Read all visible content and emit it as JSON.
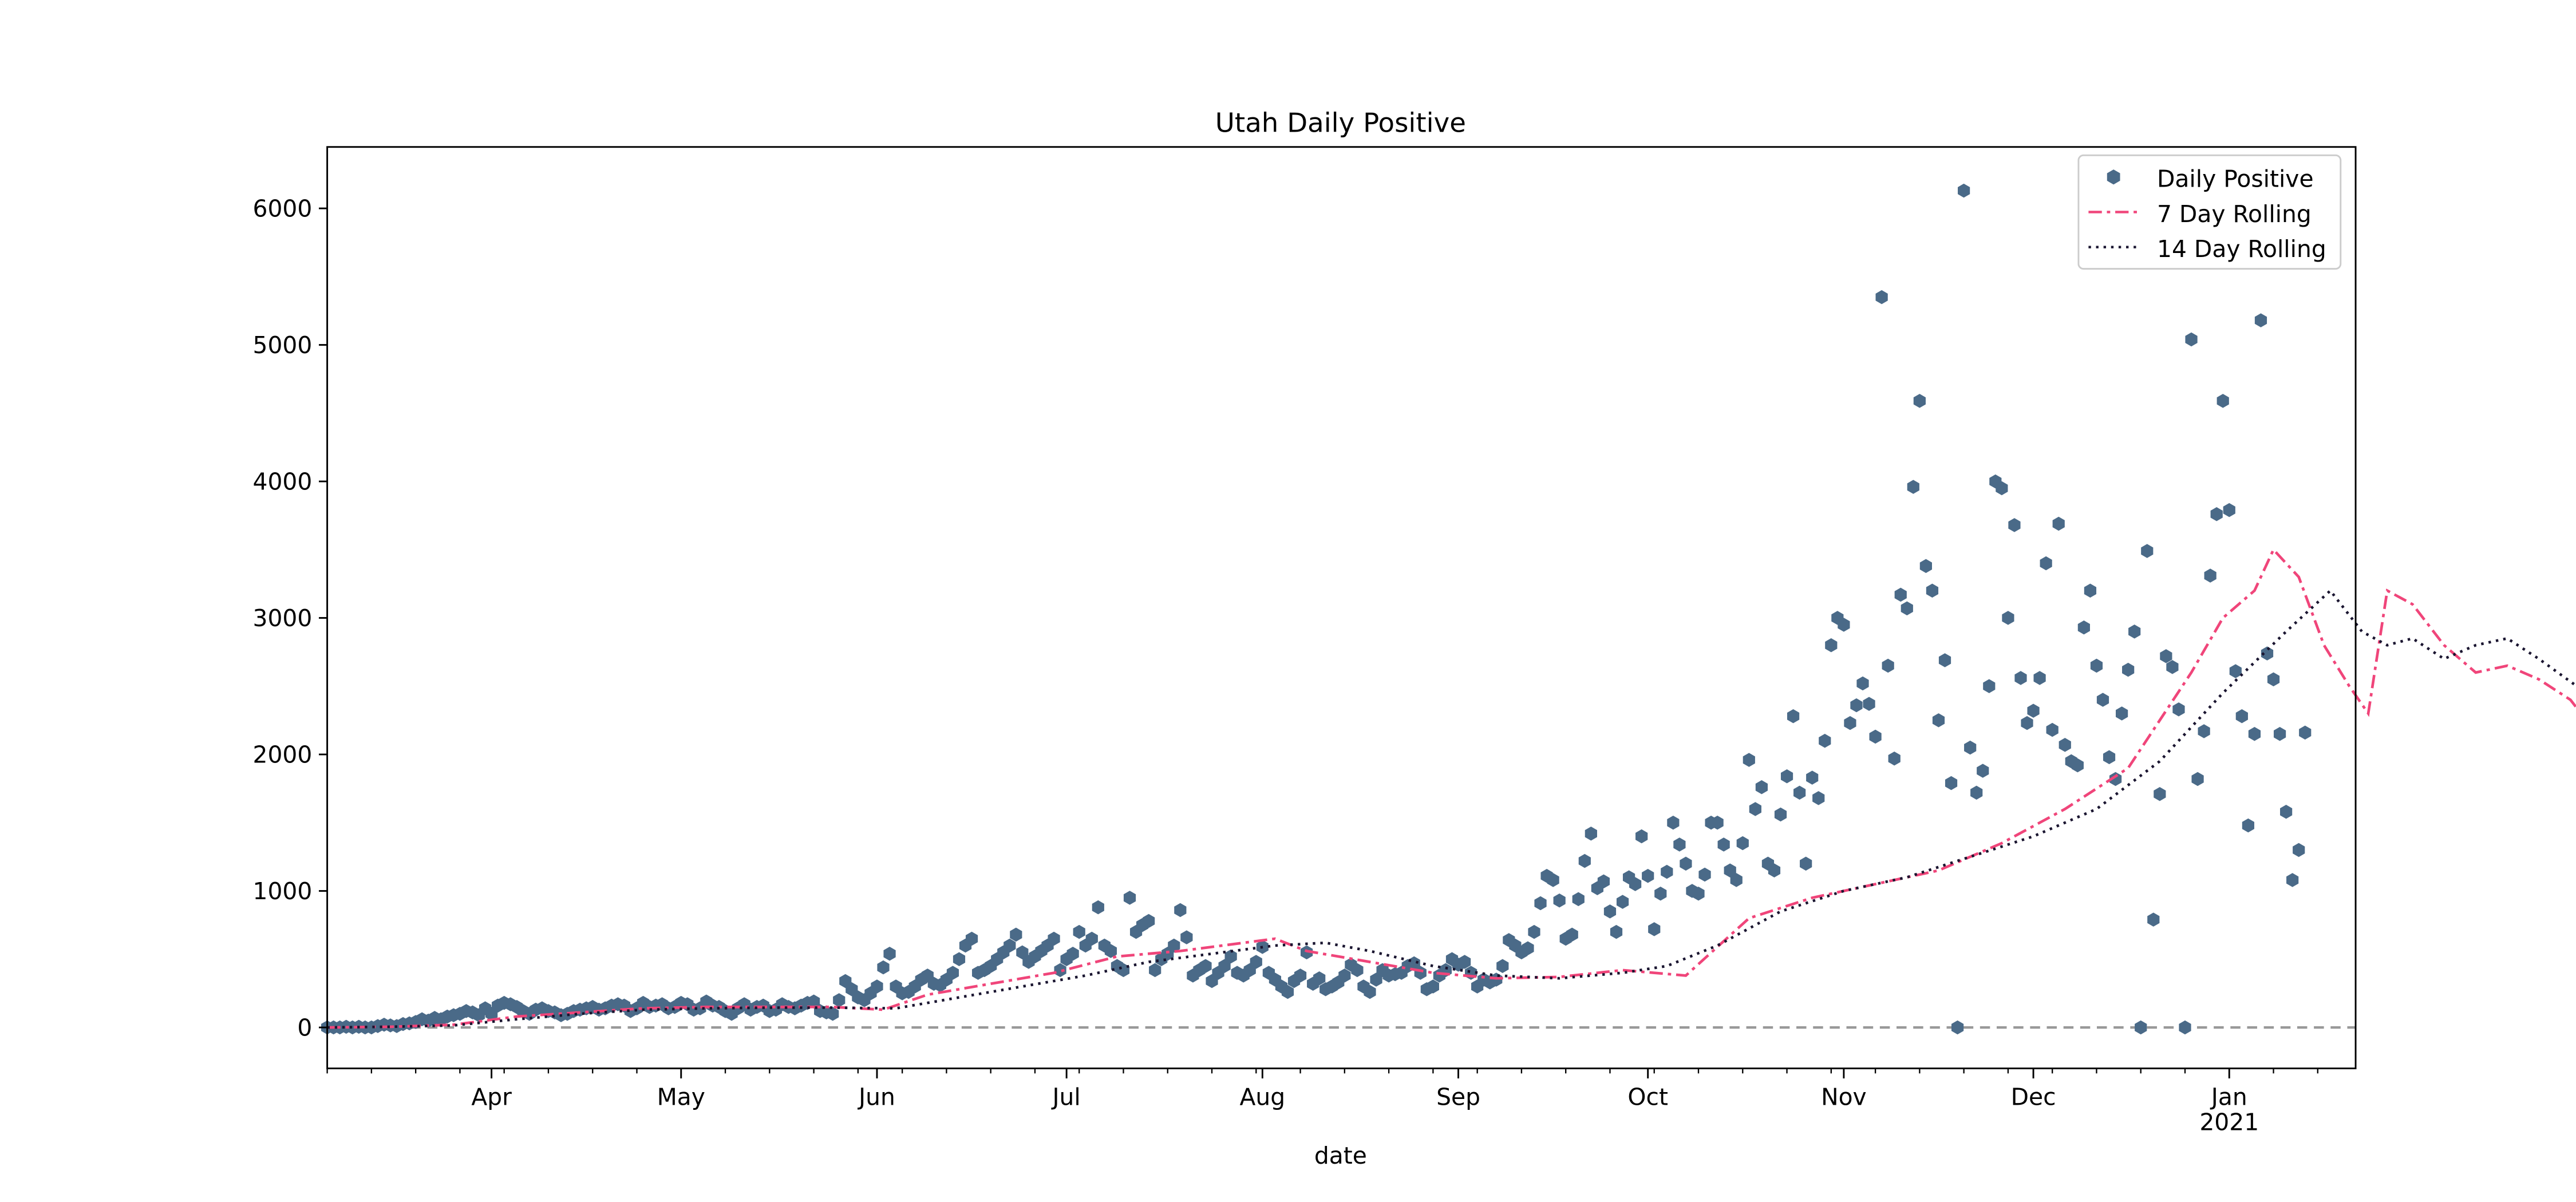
{
  "chart_data": {
    "type": "scatter",
    "title": "Utah Daily Positive",
    "xlabel": "date",
    "ylabel": "",
    "x_range": [
      "2020-03-06",
      "2021-01-21"
    ],
    "ylim": [
      -300,
      6450
    ],
    "y_ticks": [
      0,
      1000,
      2000,
      3000,
      4000,
      5000,
      6000
    ],
    "x_ticks": [
      {
        "date": "2020-04-01",
        "label": "Apr"
      },
      {
        "date": "2020-05-01",
        "label": "May"
      },
      {
        "date": "2020-06-01",
        "label": "Jun"
      },
      {
        "date": "2020-07-01",
        "label": "Jul"
      },
      {
        "date": "2020-08-01",
        "label": "Aug"
      },
      {
        "date": "2020-09-01",
        "label": "Sep"
      },
      {
        "date": "2020-10-01",
        "label": "Oct"
      },
      {
        "date": "2020-11-01",
        "label": "Nov"
      },
      {
        "date": "2020-12-01",
        "label": "Dec"
      },
      {
        "date": "2021-01-01",
        "label": "Jan",
        "sublabel": "2021"
      }
    ],
    "grid": false,
    "legend_position": "top-right",
    "zero_line": {
      "y": 0,
      "color": "#999999",
      "style": "dashed"
    },
    "series": [
      {
        "name": "Daily Positive",
        "kind": "scatter",
        "marker": "hexagon",
        "color": "#4a6a88",
        "x_start": "2020-03-06",
        "values": [
          0,
          0,
          0,
          5,
          0,
          5,
          0,
          0,
          10,
          20,
          15,
          10,
          25,
          30,
          40,
          60,
          50,
          70,
          60,
          80,
          90,
          100,
          120,
          110,
          90,
          140,
          100,
          160,
          180,
          170,
          150,
          120,
          100,
          130,
          140,
          120,
          110,
          90,
          100,
          120,
          130,
          140,
          150,
          130,
          140,
          160,
          170,
          160,
          120,
          140,
          180,
          150,
          160,
          170,
          140,
          150,
          180,
          170,
          130,
          140,
          190,
          160,
          150,
          120,
          100,
          140,
          170,
          130,
          150,
          160,
          120,
          130,
          170,
          150,
          140,
          160,
          180,
          190,
          120,
          110,
          100,
          200,
          340,
          280,
          220,
          200,
          250,
          300,
          440,
          540,
          300,
          250,
          260,
          300,
          350,
          380,
          320,
          310,
          350,
          400,
          500,
          600,
          650,
          400,
          420,
          450,
          500,
          550,
          600,
          680,
          550,
          480,
          520,
          560,
          600,
          650,
          420,
          500,
          540,
          700,
          600,
          650,
          880,
          600,
          560,
          450,
          420,
          950,
          700,
          750,
          780,
          420,
          500,
          540,
          600,
          860,
          660,
          380,
          420,
          450,
          340,
          400,
          450,
          520,
          400,
          380,
          420,
          480,
          590,
          400,
          350,
          300,
          260,
          340,
          380,
          550,
          320,
          360,
          280,
          300,
          330,
          380,
          460,
          420,
          300,
          260,
          350,
          420,
          380,
          390,
          400,
          450,
          470,
          400,
          280,
          300,
          380,
          420,
          500,
          460,
          480,
          400,
          300,
          350,
          330,
          350,
          450,
          640,
          600,
          550,
          580,
          700,
          910,
          1110,
          1080,
          930,
          650,
          680,
          940,
          1220,
          1420,
          1020,
          1070,
          850,
          700,
          920,
          1100,
          1050,
          1400,
          1110,
          720,
          980,
          1140,
          1500,
          1340,
          1200,
          1000,
          980,
          1120,
          1500,
          1500,
          1340,
          1150,
          1080,
          1350,
          1960,
          1600,
          1760,
          1200,
          1150,
          1560,
          1840,
          2280,
          1720,
          1200,
          1830,
          1680,
          2100,
          2800,
          3000,
          2950,
          2230,
          2360,
          2520,
          2370,
          2130,
          5350,
          2650,
          1970,
          3170,
          3070,
          3960,
          4590,
          3380,
          3200,
          2250,
          2690,
          1790,
          0,
          6130,
          2050,
          1720,
          1880,
          2500,
          4000,
          3950,
          3000,
          3680,
          2560,
          2230,
          2320,
          2560,
          3400,
          2180,
          3690,
          2070,
          1950,
          1920,
          2930,
          3200,
          2650,
          2400,
          1980,
          1820,
          2300,
          2620,
          2900,
          0,
          3490,
          790,
          1710,
          2720,
          2640,
          2330,
          0,
          5040,
          1820,
          2170,
          3310,
          3760,
          4590,
          3790,
          2610,
          2280,
          1480,
          2150,
          5180,
          2740,
          2550,
          2150,
          1580,
          1080,
          1300,
          2160
        ]
      },
      {
        "name": "7 Day Rolling",
        "kind": "line",
        "style": "dashdot",
        "color": "#f0457a",
        "x_start": "2020-03-06",
        "points": [
          [
            0,
            0
          ],
          [
            10,
            5
          ],
          [
            20,
            20
          ],
          [
            30,
            80
          ],
          [
            40,
            110
          ],
          [
            50,
            140
          ],
          [
            60,
            150
          ],
          [
            70,
            150
          ],
          [
            80,
            150
          ],
          [
            88,
            130
          ],
          [
            95,
            240
          ],
          [
            105,
            320
          ],
          [
            115,
            400
          ],
          [
            125,
            520
          ],
          [
            135,
            560
          ],
          [
            145,
            620
          ],
          [
            150,
            650
          ],
          [
            155,
            560
          ],
          [
            165,
            480
          ],
          [
            175,
            400
          ],
          [
            185,
            360
          ],
          [
            195,
            370
          ],
          [
            205,
            420
          ],
          [
            215,
            380
          ],
          [
            225,
            800
          ],
          [
            235,
            950
          ],
          [
            245,
            1050
          ],
          [
            255,
            1150
          ],
          [
            265,
            1350
          ],
          [
            275,
            1600
          ],
          [
            285,
            1900
          ],
          [
            290,
            2250
          ],
          [
            295,
            2600
          ],
          [
            300,
            3000
          ],
          [
            305,
            3200
          ],
          [
            308,
            3500
          ],
          [
            312,
            3300
          ],
          [
            316,
            2800
          ],
          [
            320,
            2500
          ],
          [
            323,
            2300
          ],
          [
            326,
            3200
          ],
          [
            330,
            3100
          ],
          [
            335,
            2800
          ],
          [
            340,
            2600
          ],
          [
            345,
            2650
          ],
          [
            350,
            2550
          ],
          [
            355,
            2400
          ],
          [
            360,
            2100
          ],
          [
            363,
            2000
          ],
          [
            366,
            2100
          ],
          [
            370,
            2600
          ],
          [
            374,
            3000
          ],
          [
            377,
            3500
          ],
          [
            381,
            3100
          ],
          [
            385,
            2800
          ],
          [
            390,
            2400
          ],
          [
            393,
            2200
          ],
          [
            395,
            1870
          ]
        ]
      },
      {
        "name": "14 Day Rolling",
        "kind": "line",
        "style": "dotted",
        "color": "#1a1530",
        "x_start": "2020-03-06",
        "points": [
          [
            0,
            0
          ],
          [
            10,
            5
          ],
          [
            20,
            15
          ],
          [
            30,
            60
          ],
          [
            40,
            100
          ],
          [
            50,
            130
          ],
          [
            60,
            140
          ],
          [
            70,
            145
          ],
          [
            80,
            145
          ],
          [
            90,
            140
          ],
          [
            100,
            220
          ],
          [
            110,
            300
          ],
          [
            120,
            380
          ],
          [
            130,
            480
          ],
          [
            140,
            540
          ],
          [
            150,
            600
          ],
          [
            158,
            620
          ],
          [
            165,
            560
          ],
          [
            175,
            450
          ],
          [
            185,
            380
          ],
          [
            195,
            360
          ],
          [
            205,
            400
          ],
          [
            212,
            450
          ],
          [
            220,
            600
          ],
          [
            230,
            850
          ],
          [
            240,
            1000
          ],
          [
            250,
            1100
          ],
          [
            260,
            1250
          ],
          [
            270,
            1400
          ],
          [
            280,
            1600
          ],
          [
            290,
            1950
          ],
          [
            300,
            2450
          ],
          [
            310,
            2900
          ],
          [
            317,
            3200
          ],
          [
            322,
            2900
          ],
          [
            326,
            2800
          ],
          [
            330,
            2850
          ],
          [
            335,
            2700
          ],
          [
            340,
            2800
          ],
          [
            345,
            2850
          ],
          [
            350,
            2700
          ],
          [
            356,
            2500
          ],
          [
            360,
            2250
          ],
          [
            364,
            2200
          ],
          [
            368,
            2300
          ],
          [
            372,
            2600
          ],
          [
            376,
            2850
          ],
          [
            380,
            3000
          ],
          [
            384,
            3100
          ],
          [
            388,
            2950
          ],
          [
            392,
            2700
          ],
          [
            395,
            2400
          ]
        ]
      }
    ]
  }
}
